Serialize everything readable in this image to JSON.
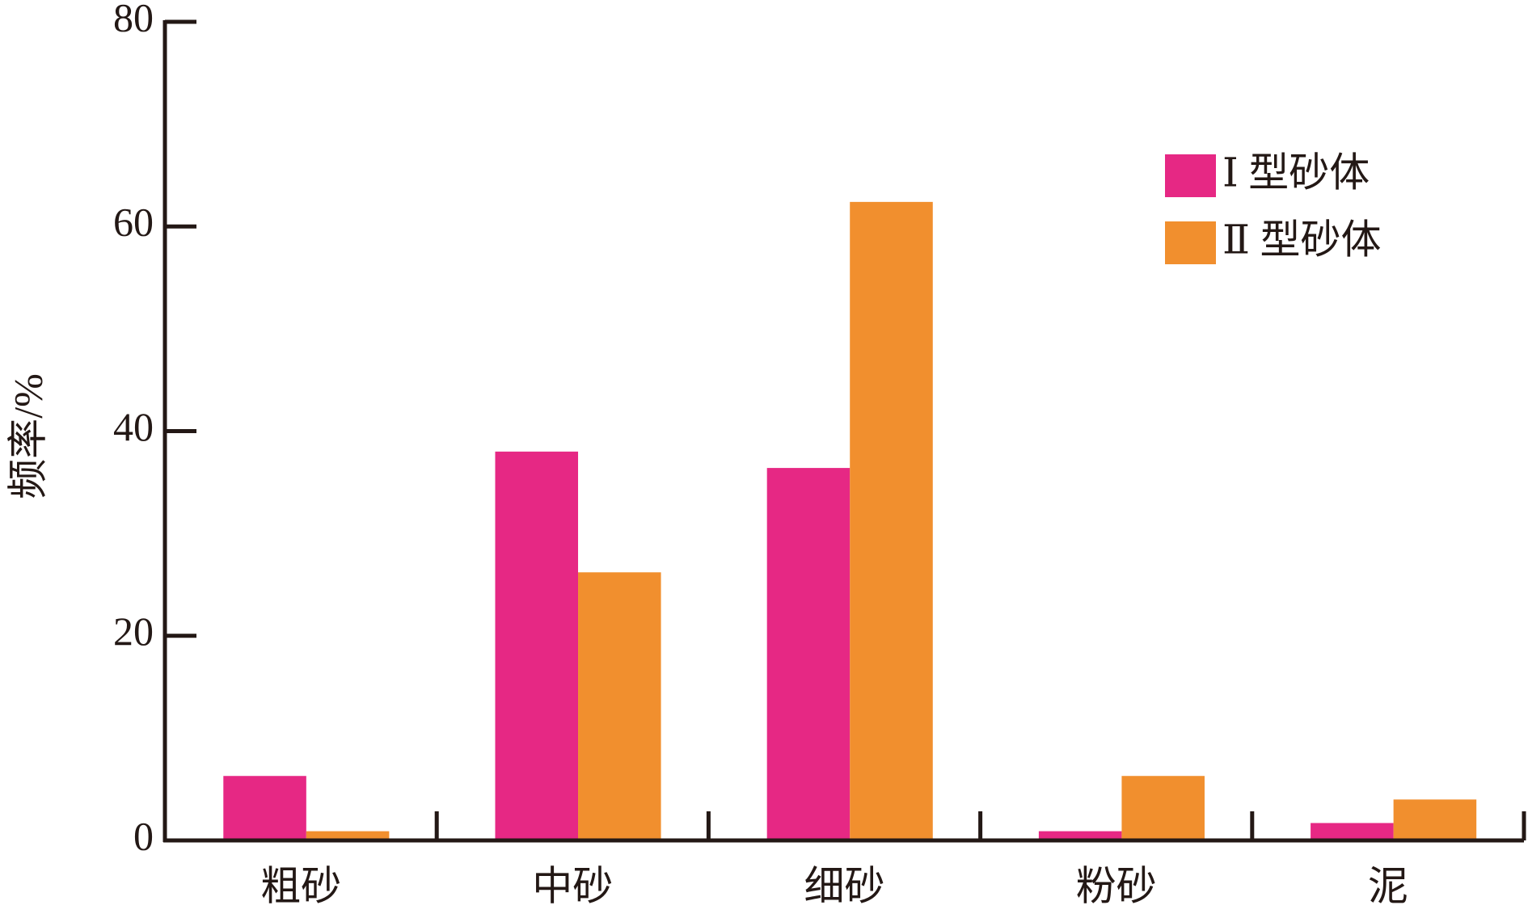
{
  "chart_data": {
    "type": "bar",
    "y_label": "频率/%",
    "categories": [
      "粗砂",
      "中砂",
      "细砂",
      "粉砂",
      "泥"
    ],
    "series": [
      {
        "name": "Ⅰ 型砂体",
        "color": "#e62884",
        "values": [
          6.3,
          38.0,
          36.4,
          0.9,
          1.7
        ]
      },
      {
        "name": "Ⅱ 型砂体",
        "color": "#f18f2e",
        "values": [
          0.9,
          26.2,
          62.4,
          6.3,
          4.0
        ]
      }
    ],
    "ylim": [
      0,
      80
    ],
    "yticks": [
      0,
      20,
      40,
      60,
      80
    ],
    "grid": false,
    "legend": "upper-right"
  }
}
